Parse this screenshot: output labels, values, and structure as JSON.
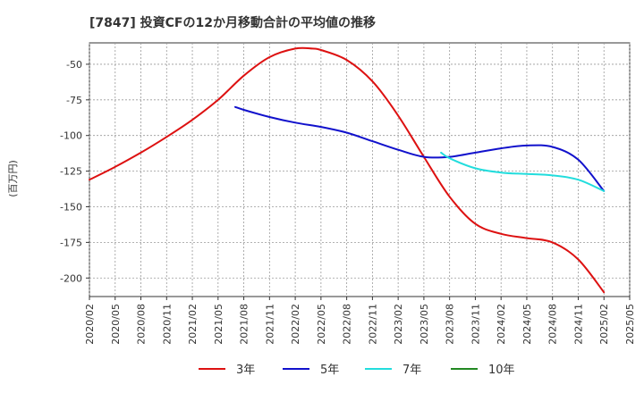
{
  "chart_data": {
    "type": "line",
    "title": "[7847]  投資CFの12か月移動合計の平均値の推移",
    "ylabel": "(百万円)",
    "xlabel": "",
    "ylim": [
      -213,
      -35
    ],
    "yticks": [
      -50,
      -75,
      -100,
      -125,
      -150,
      -175,
      -200
    ],
    "x_ticks": [
      "2020/02",
      "2020/05",
      "2020/08",
      "2020/11",
      "2021/02",
      "2021/05",
      "2021/08",
      "2021/11",
      "2022/02",
      "2022/05",
      "2022/08",
      "2022/11",
      "2023/02",
      "2023/05",
      "2023/08",
      "2023/11",
      "2024/02",
      "2024/05",
      "2024/08",
      "2024/11",
      "2025/02",
      "2025/05"
    ],
    "grid": true,
    "legend_position": "bottom",
    "series": [
      {
        "name": "3年",
        "color": "#dd1111",
        "points": [
          [
            "2020/02",
            -131
          ],
          [
            "2020/05",
            -122
          ],
          [
            "2020/08",
            -112
          ],
          [
            "2020/11",
            -101
          ],
          [
            "2021/02",
            -89
          ],
          [
            "2021/05",
            -75
          ],
          [
            "2021/08",
            -58
          ],
          [
            "2021/11",
            -45
          ],
          [
            "2022/02",
            -39
          ],
          [
            "2022/04",
            -39
          ],
          [
            "2022/05",
            -40
          ],
          [
            "2022/08",
            -47
          ],
          [
            "2022/11",
            -62
          ],
          [
            "2023/02",
            -86
          ],
          [
            "2023/05",
            -115
          ],
          [
            "2023/08",
            -143
          ],
          [
            "2023/11",
            -162
          ],
          [
            "2024/02",
            -169
          ],
          [
            "2024/05",
            -172
          ],
          [
            "2024/08",
            -175
          ],
          [
            "2024/11",
            -187
          ],
          [
            "2025/02",
            -210
          ]
        ]
      },
      {
        "name": "5年",
        "color": "#1111cc",
        "points": [
          [
            "2021/07",
            -80
          ],
          [
            "2021/08",
            -82
          ],
          [
            "2021/11",
            -87
          ],
          [
            "2022/02",
            -91
          ],
          [
            "2022/05",
            -94
          ],
          [
            "2022/08",
            -98
          ],
          [
            "2022/11",
            -104
          ],
          [
            "2023/02",
            -110
          ],
          [
            "2023/05",
            -115
          ],
          [
            "2023/08",
            -115
          ],
          [
            "2023/11",
            -112
          ],
          [
            "2024/02",
            -109
          ],
          [
            "2024/05",
            -107
          ],
          [
            "2024/08",
            -108
          ],
          [
            "2024/11",
            -117
          ],
          [
            "2025/02",
            -139
          ]
        ]
      },
      {
        "name": "7年",
        "color": "#22dddd",
        "points": [
          [
            "2023/07",
            -112
          ],
          [
            "2023/08",
            -116
          ],
          [
            "2023/11",
            -123
          ],
          [
            "2024/02",
            -126
          ],
          [
            "2024/05",
            -127
          ],
          [
            "2024/08",
            -128
          ],
          [
            "2024/11",
            -131
          ],
          [
            "2025/02",
            -139
          ]
        ]
      },
      {
        "name": "10年",
        "color": "#228822",
        "points": []
      }
    ]
  }
}
